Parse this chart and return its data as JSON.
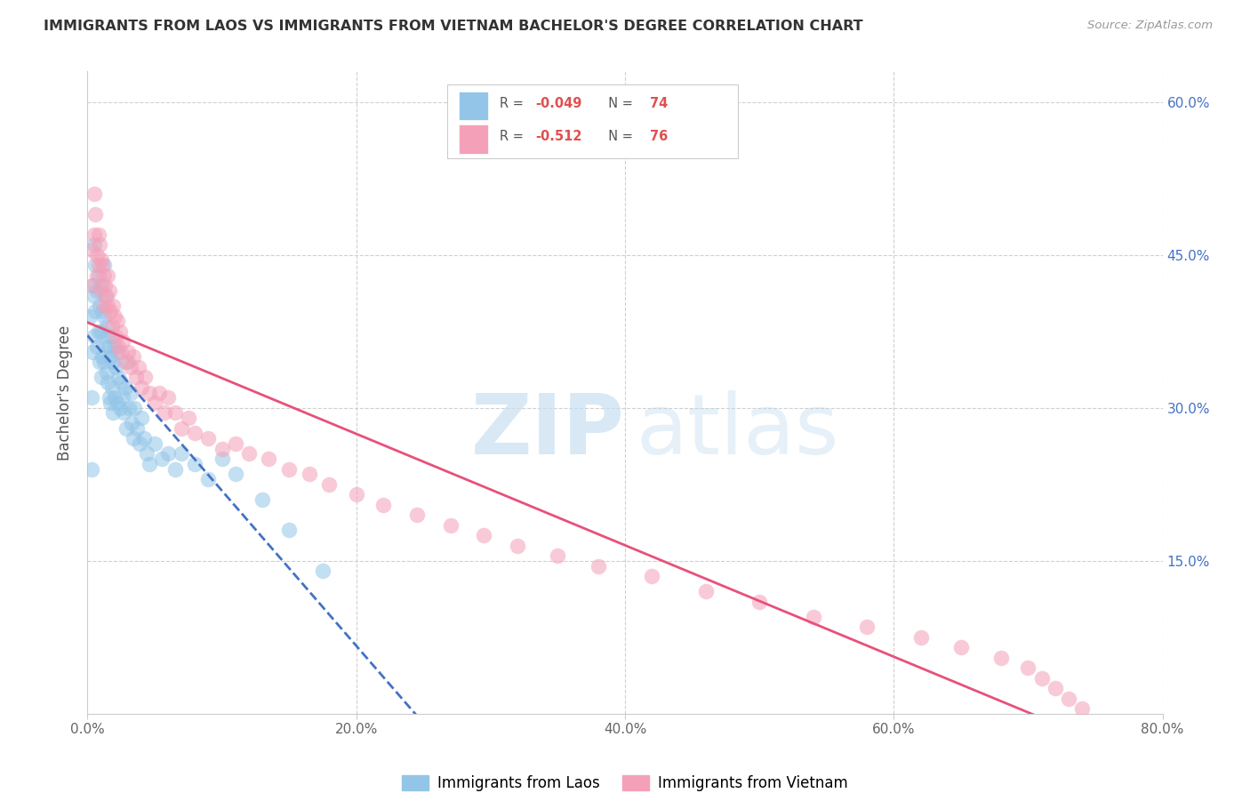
{
  "title": "IMMIGRANTS FROM LAOS VS IMMIGRANTS FROM VIETNAM BACHELOR'S DEGREE CORRELATION CHART",
  "source": "Source: ZipAtlas.com",
  "ylabel": "Bachelor's Degree",
  "xlabel_ticks": [
    "0.0%",
    "20.0%",
    "40.0%",
    "60.0%",
    "80.0%"
  ],
  "xlabel_vals": [
    0.0,
    0.2,
    0.4,
    0.6,
    0.8
  ],
  "xmin": 0.0,
  "xmax": 0.8,
  "ymin": 0.0,
  "ymax": 0.63,
  "color_laos": "#92C5E8",
  "color_vietnam": "#F4A0B8",
  "line_color_laos": "#4472C4",
  "line_color_vietnam": "#E8507A",
  "laos_x": [
    0.002,
    0.003,
    0.003,
    0.004,
    0.004,
    0.005,
    0.005,
    0.005,
    0.006,
    0.006,
    0.007,
    0.007,
    0.008,
    0.008,
    0.009,
    0.009,
    0.01,
    0.01,
    0.01,
    0.011,
    0.011,
    0.012,
    0.012,
    0.012,
    0.013,
    0.013,
    0.014,
    0.014,
    0.015,
    0.015,
    0.016,
    0.016,
    0.017,
    0.017,
    0.018,
    0.018,
    0.019,
    0.019,
    0.02,
    0.02,
    0.021,
    0.022,
    0.022,
    0.023,
    0.024,
    0.025,
    0.026,
    0.027,
    0.028,
    0.029,
    0.03,
    0.031,
    0.032,
    0.033,
    0.034,
    0.035,
    0.037,
    0.039,
    0.04,
    0.042,
    0.044,
    0.046,
    0.05,
    0.055,
    0.06,
    0.065,
    0.07,
    0.08,
    0.09,
    0.1,
    0.11,
    0.13,
    0.15,
    0.175
  ],
  "laos_y": [
    0.39,
    0.31,
    0.24,
    0.42,
    0.355,
    0.46,
    0.41,
    0.37,
    0.44,
    0.395,
    0.415,
    0.36,
    0.43,
    0.375,
    0.4,
    0.345,
    0.42,
    0.375,
    0.33,
    0.395,
    0.35,
    0.44,
    0.39,
    0.345,
    0.41,
    0.36,
    0.38,
    0.335,
    0.37,
    0.325,
    0.36,
    0.31,
    0.35,
    0.305,
    0.37,
    0.32,
    0.345,
    0.295,
    0.36,
    0.31,
    0.34,
    0.355,
    0.305,
    0.33,
    0.3,
    0.325,
    0.31,
    0.295,
    0.32,
    0.28,
    0.345,
    0.3,
    0.315,
    0.285,
    0.27,
    0.3,
    0.28,
    0.265,
    0.29,
    0.27,
    0.255,
    0.245,
    0.265,
    0.25,
    0.255,
    0.24,
    0.255,
    0.245,
    0.23,
    0.25,
    0.235,
    0.21,
    0.18,
    0.14
  ],
  "vietnam_x": [
    0.003,
    0.004,
    0.005,
    0.005,
    0.006,
    0.007,
    0.007,
    0.008,
    0.008,
    0.009,
    0.01,
    0.01,
    0.011,
    0.012,
    0.012,
    0.013,
    0.014,
    0.015,
    0.015,
    0.016,
    0.017,
    0.018,
    0.019,
    0.02,
    0.021,
    0.022,
    0.023,
    0.024,
    0.025,
    0.026,
    0.028,
    0.03,
    0.032,
    0.034,
    0.036,
    0.038,
    0.04,
    0.043,
    0.046,
    0.05,
    0.053,
    0.057,
    0.06,
    0.065,
    0.07,
    0.075,
    0.08,
    0.09,
    0.1,
    0.11,
    0.12,
    0.135,
    0.15,
    0.165,
    0.18,
    0.2,
    0.22,
    0.245,
    0.27,
    0.295,
    0.32,
    0.35,
    0.38,
    0.42,
    0.46,
    0.5,
    0.54,
    0.58,
    0.62,
    0.65,
    0.68,
    0.7,
    0.71,
    0.72,
    0.73,
    0.74
  ],
  "vietnam_y": [
    0.455,
    0.42,
    0.47,
    0.51,
    0.49,
    0.45,
    0.43,
    0.47,
    0.44,
    0.46,
    0.445,
    0.415,
    0.44,
    0.43,
    0.4,
    0.42,
    0.41,
    0.43,
    0.4,
    0.415,
    0.395,
    0.38,
    0.4,
    0.39,
    0.37,
    0.385,
    0.36,
    0.375,
    0.355,
    0.365,
    0.345,
    0.355,
    0.34,
    0.35,
    0.33,
    0.34,
    0.32,
    0.33,
    0.315,
    0.305,
    0.315,
    0.295,
    0.31,
    0.295,
    0.28,
    0.29,
    0.275,
    0.27,
    0.26,
    0.265,
    0.255,
    0.25,
    0.24,
    0.235,
    0.225,
    0.215,
    0.205,
    0.195,
    0.185,
    0.175,
    0.165,
    0.155,
    0.145,
    0.135,
    0.12,
    0.11,
    0.095,
    0.085,
    0.075,
    0.065,
    0.055,
    0.045,
    0.035,
    0.025,
    0.015,
    0.005
  ]
}
